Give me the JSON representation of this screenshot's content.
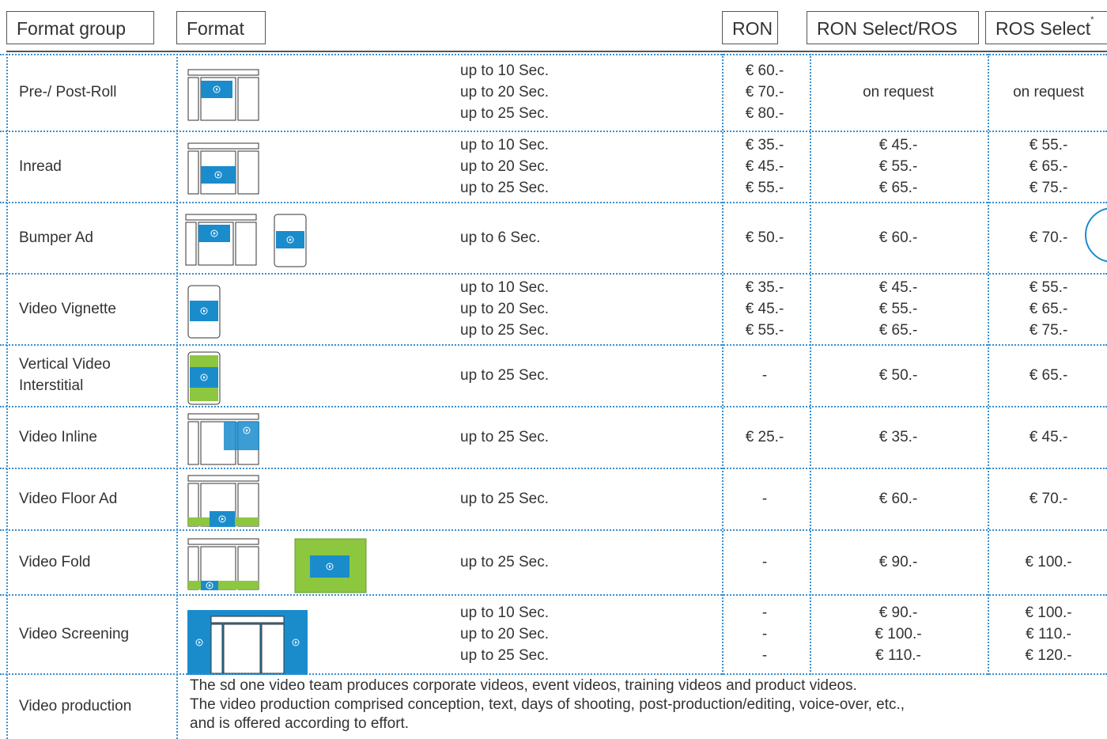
{
  "header": {
    "format_group": "Format group",
    "format": "Format",
    "ron": "RON",
    "ron_select": "RON Select/ROS",
    "ros_select": {
      "text": "ROS Select",
      "sup": "*"
    }
  },
  "rows": [
    {
      "group": "Pre-/ Post-Roll",
      "durations": [
        "up to 10 Sec.",
        "up to 20 Sec.",
        "up to 25 Sec."
      ],
      "ron": [
        "€ 60.-",
        "€ 70.-",
        "€ 80.-"
      ],
      "ron_select": [
        "on request"
      ],
      "ros_select": [
        "on request"
      ]
    },
    {
      "group": "Inread",
      "durations": [
        "up to 10 Sec.",
        "up to 20 Sec.",
        "up to 25 Sec."
      ],
      "ron": [
        "€ 35.-",
        "€ 45.-",
        "€ 55.-"
      ],
      "ron_select": [
        "€ 45.-",
        "€ 55.-",
        "€ 65.-"
      ],
      "ros_select": [
        "€ 55.-",
        "€ 65.-",
        "€ 75.-"
      ]
    },
    {
      "group": "Bumper Ad",
      "durations": [
        "up to 6 Sec."
      ],
      "ron": [
        "€ 50.-"
      ],
      "ron_select": [
        "€ 60.-"
      ],
      "ros_select": [
        "€ 70.-"
      ]
    },
    {
      "group": "Video Vignette",
      "durations": [
        "up to 10 Sec.",
        "up to 20 Sec.",
        "up to 25 Sec."
      ],
      "ron": [
        "€ 35.-",
        "€ 45.-",
        "€ 55.-"
      ],
      "ron_select": [
        "€ 45.-",
        "€ 55.-",
        "€ 65.-"
      ],
      "ros_select": [
        "€ 55.-",
        "€ 65.-",
        "€ 75.-"
      ]
    },
    {
      "group": "Vertical Video Interstitial",
      "durations": [
        "up to 25 Sec."
      ],
      "ron": [
        "-"
      ],
      "ron_select": [
        "€ 50.-"
      ],
      "ros_select": [
        "€ 65.-"
      ]
    },
    {
      "group": "Video Inline",
      "durations": [
        "up to 25 Sec."
      ],
      "ron": [
        "€ 25.-"
      ],
      "ron_select": [
        "€ 35.-"
      ],
      "ros_select": [
        "€ 45.-"
      ]
    },
    {
      "group": "Video Floor Ad",
      "durations": [
        "up to 25 Sec."
      ],
      "ron": [
        "-"
      ],
      "ron_select": [
        "€ 60.-"
      ],
      "ros_select": [
        "€ 70.-"
      ]
    },
    {
      "group": "Video Fold",
      "durations": [
        "up to 25 Sec."
      ],
      "ron": [
        "-"
      ],
      "ron_select": [
        "€ 90.-"
      ],
      "ros_select": [
        "€ 100.-"
      ]
    },
    {
      "group": "Video Screening",
      "durations": [
        "up to 10 Sec.",
        "up to 20 Sec.",
        "up to 25 Sec."
      ],
      "ron": [
        "-",
        "-",
        "-"
      ],
      "ron_select": [
        "€ 90.-",
        "€ 100.-",
        "€ 110.-"
      ],
      "ros_select": [
        "€ 100.-",
        "€ 110.-",
        "€ 120.-"
      ]
    }
  ],
  "production": {
    "group": "Video production",
    "lines": [
      "The sd one video team produces corporate videos, event videos, training videos and product videos.",
      "The video production comprised conception, text, days of shooting, post-production/editing, voice-over, etc.,",
      "and is offered according to effort."
    ]
  }
}
